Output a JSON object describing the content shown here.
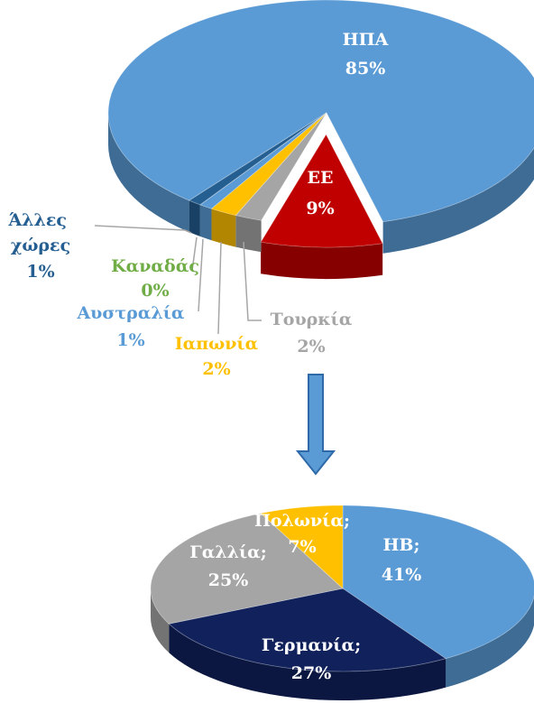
{
  "chart_data": [
    {
      "type": "pie",
      "categories": [
        "ΗΠΑ",
        "ΕΕ",
        "Τουρκία",
        "Ιαπωνία",
        "Αυστραλία",
        "Καναδάς",
        "Άλλες χώρες"
      ],
      "values": [
        85,
        9,
        2,
        2,
        1,
        0,
        1
      ],
      "value_labels": [
        "85%",
        "9%",
        "2%",
        "2%",
        "1%",
        "0%",
        "1%"
      ],
      "colors": [
        "#5b9bd5",
        "#c00000",
        "#a5a5a5",
        "#ffc000",
        "#5b9bd5",
        "#70ad47",
        "#255e91"
      ]
    },
    {
      "type": "pie",
      "categories": [
        "ΗΒ;",
        "Γερμανία;",
        "Γαλλία;",
        "Πολωνία;"
      ],
      "values": [
        41,
        27,
        25,
        7
      ],
      "value_labels": [
        "41%",
        "27%",
        "25%",
        "7%"
      ],
      "colors": [
        "#5b9bd5",
        "#10215c",
        "#a5a5a5",
        "#ffc000"
      ]
    }
  ]
}
